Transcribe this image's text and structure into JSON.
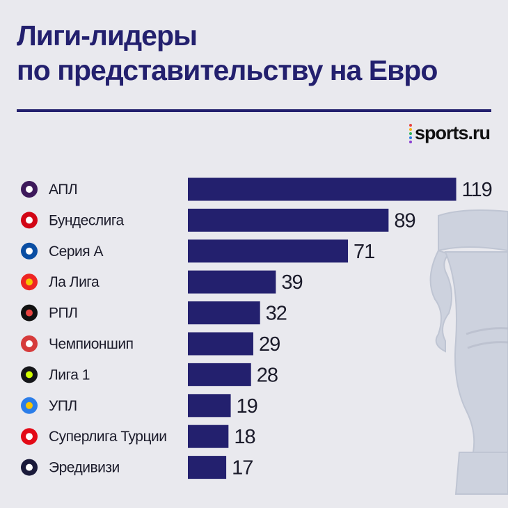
{
  "title": "Лиги-лидеры по представительству на Евро",
  "title_lines": [
    "Лиги-лидеры",
    "по представительству на Евро"
  ],
  "brand": "sports.ru",
  "colors": {
    "background": "#e9e9ee",
    "accent": "#23206e",
    "bar": "#23206e",
    "text": "#1b1b2a"
  },
  "chart_data": {
    "type": "bar",
    "orientation": "horizontal",
    "categories": [
      "АПЛ",
      "Бундеслига",
      "Серия А",
      "Ла Лига",
      "РПЛ",
      "Чемпионшип",
      "Лига 1",
      "УПЛ",
      "Суперлига Турции",
      "Эредивизи"
    ],
    "values": [
      119,
      89,
      71,
      39,
      32,
      29,
      28,
      19,
      18,
      17
    ],
    "icons": [
      "premier-league-logo-icon",
      "bundesliga-logo-icon",
      "serie-a-logo-icon",
      "laliga-logo-icon",
      "rpl-bear-logo-icon",
      "championship-logo-icon",
      "ligue-1-logo-icon",
      "upl-logo-icon",
      "super-lig-logo-icon",
      "eredivisie-logo-icon"
    ],
    "grid": false,
    "legend": "none"
  }
}
